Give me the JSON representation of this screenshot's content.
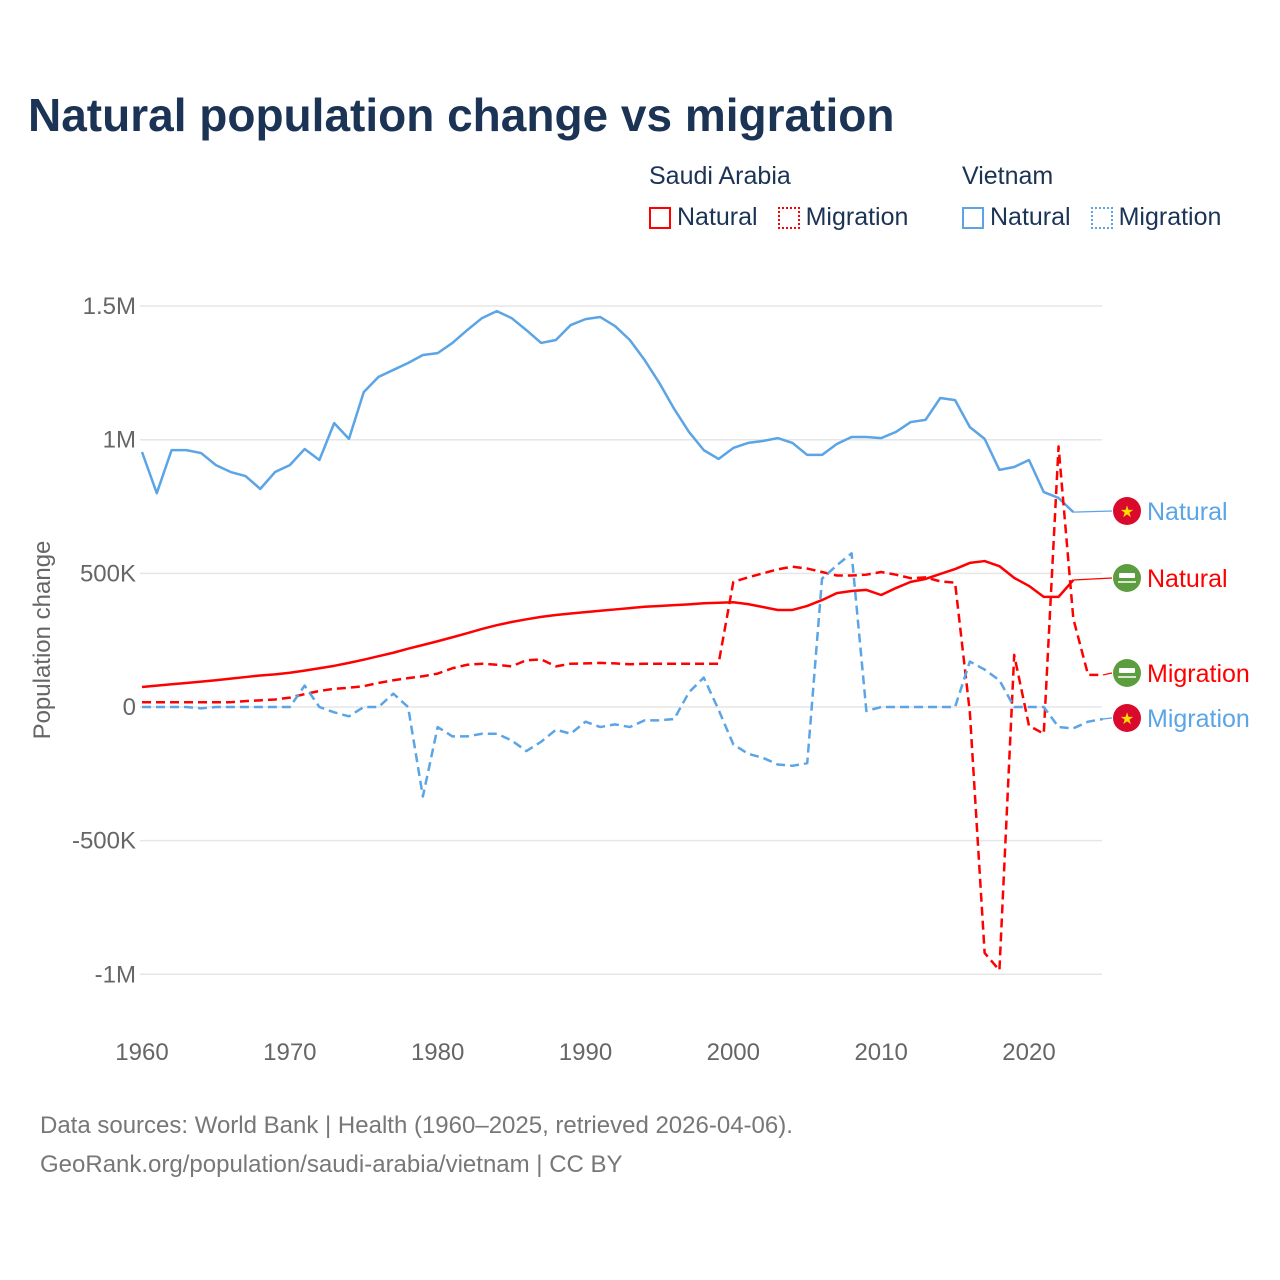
{
  "title": "Natural population change vs migration",
  "legend": {
    "groups": [
      {
        "name": "Saudi Arabia",
        "items": [
          "Natural",
          "Migration"
        ],
        "color": "#ff0000"
      },
      {
        "name": "Vietnam",
        "items": [
          "Natural",
          "Migration"
        ],
        "color": "#5ba4e6"
      }
    ]
  },
  "footer": {
    "line1": "Data sources: World Bank | Health (1960–2025, retrieved 2026-04-06).",
    "line2": "GeoRank.org/population/saudi-arabia/vietnam | CC BY"
  },
  "chart_data": {
    "type": "line",
    "title": "Natural population change vs migration",
    "xlabel": "",
    "ylabel": "Population change",
    "xlim": [
      1960,
      2025
    ],
    "ylim": [
      -1100000,
      1600000
    ],
    "x_ticks": [
      1960,
      1970,
      1980,
      1990,
      2000,
      2010,
      2020
    ],
    "x_tick_labels": [
      "1960",
      "1970",
      "1980",
      "1990",
      "2000",
      "2010",
      "2020"
    ],
    "y_ticks": [
      1500000,
      1000000,
      500000,
      0,
      -500000,
      -1000000
    ],
    "y_tick_labels": [
      "1.5M",
      "1M",
      "500K",
      "0",
      "-500K",
      "-1M"
    ],
    "grid": true,
    "series": [
      {
        "name": "Vietnam Natural",
        "label": "Natural",
        "country": "Vietnam",
        "color": "#5ba4e6",
        "dash": "solid",
        "flag": "vietnam-flag",
        "start": 1960,
        "unit": "thousand",
        "values": [
          954,
          800,
          961,
          961,
          950,
          905,
          879,
          864,
          816,
          879,
          905,
          965,
          924,
          1062,
          1003,
          1178,
          1235,
          1261,
          1287,
          1317,
          1324,
          1362,
          1410,
          1455,
          1481,
          1455,
          1410,
          1362,
          1373,
          1429,
          1451,
          1459,
          1425,
          1373,
          1298,
          1212,
          1115,
          1029,
          961,
          928,
          969,
          988,
          995,
          1006,
          988,
          943,
          943,
          984,
          1010,
          1010,
          1006,
          1029,
          1066,
          1074,
          1156,
          1148,
          1047,
          1003,
          887,
          898,
          924,
          804,
          782,
          729
        ]
      },
      {
        "name": "Saudi Arabia Natural",
        "label": "Natural",
        "country": "Saudi Arabia",
        "color": "#ff0000",
        "dash": "solid",
        "flag": "saudi-flag",
        "start": 1960,
        "unit": "thousand",
        "values": [
          75,
          80,
          85,
          90,
          95,
          100,
          106,
          112,
          118,
          122,
          128,
          136,
          145,
          154,
          165,
          177,
          190,
          203,
          218,
          232,
          246,
          261,
          276,
          292,
          306,
          318,
          328,
          337,
          344,
          350,
          355,
          360,
          365,
          370,
          375,
          378,
          381,
          384,
          388,
          390,
          392,
          385,
          374,
          363,
          363,
          378,
          400,
          426,
          434,
          438,
          419,
          445,
          468,
          479,
          498,
          516,
          539,
          546,
          527,
          483,
          453,
          412,
          412,
          475
        ]
      },
      {
        "name": "Saudi Arabia Migration",
        "label": "Migration",
        "country": "Saudi Arabia",
        "color": "#ff0000",
        "dash": "dashed",
        "flag": "saudi-flag",
        "start": 1960,
        "unit": "thousand",
        "values": [
          18,
          18,
          18,
          18,
          18,
          18,
          18,
          22,
          25,
          28,
          35,
          48,
          60,
          68,
          72,
          78,
          90,
          100,
          108,
          115,
          125,
          145,
          158,
          162,
          158,
          152,
          175,
          178,
          152,
          162,
          163,
          165,
          163,
          160,
          162,
          162,
          162,
          162,
          162,
          162,
          468,
          485,
          500,
          515,
          525,
          518,
          505,
          492,
          492,
          495,
          505,
          495,
          482,
          485,
          470,
          465,
          -20,
          -920,
          -985,
          195,
          -70,
          -100,
          975,
          330,
          120,
          120
        ]
      },
      {
        "name": "Vietnam Migration",
        "label": "Migration",
        "country": "Vietnam",
        "color": "#5ba4e6",
        "dash": "dashed",
        "flag": "vietnam-flag",
        "start": 1960,
        "unit": "thousand",
        "values": [
          0,
          0,
          0,
          0,
          -5,
          0,
          0,
          0,
          0,
          0,
          0,
          80,
          0,
          -20,
          -35,
          0,
          0,
          50,
          0,
          -335,
          -75,
          -110,
          -110,
          -100,
          -100,
          -125,
          -165,
          -130,
          -85,
          -100,
          -55,
          -75,
          -65,
          -75,
          -50,
          -50,
          -45,
          55,
          110,
          -10,
          -140,
          -175,
          -190,
          -215,
          -220,
          -210,
          480,
          530,
          575,
          -15,
          0,
          0,
          0,
          0,
          0,
          0,
          170,
          140,
          100,
          0,
          0,
          0,
          -75,
          -80,
          -55,
          -45
        ]
      }
    ]
  }
}
